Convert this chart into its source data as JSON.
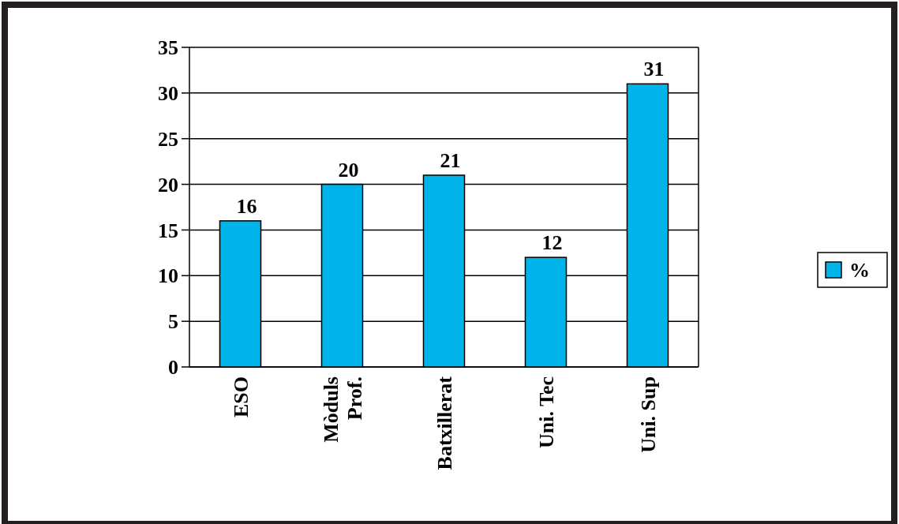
{
  "chart_data": {
    "type": "bar",
    "categories": [
      "ESO",
      "Mòduls Prof.",
      "Batxillerat",
      "Uni. Tec",
      "Uni. Sup"
    ],
    "series": [
      {
        "name": "%",
        "color": "#00b4ea",
        "values": [
          16,
          20,
          21,
          12,
          31
        ]
      }
    ],
    "ylim": [
      0,
      35
    ],
    "yticks": [
      0,
      5,
      10,
      15,
      20,
      25,
      30,
      35
    ],
    "grid": "y",
    "legend": "right",
    "data_labels": true
  }
}
